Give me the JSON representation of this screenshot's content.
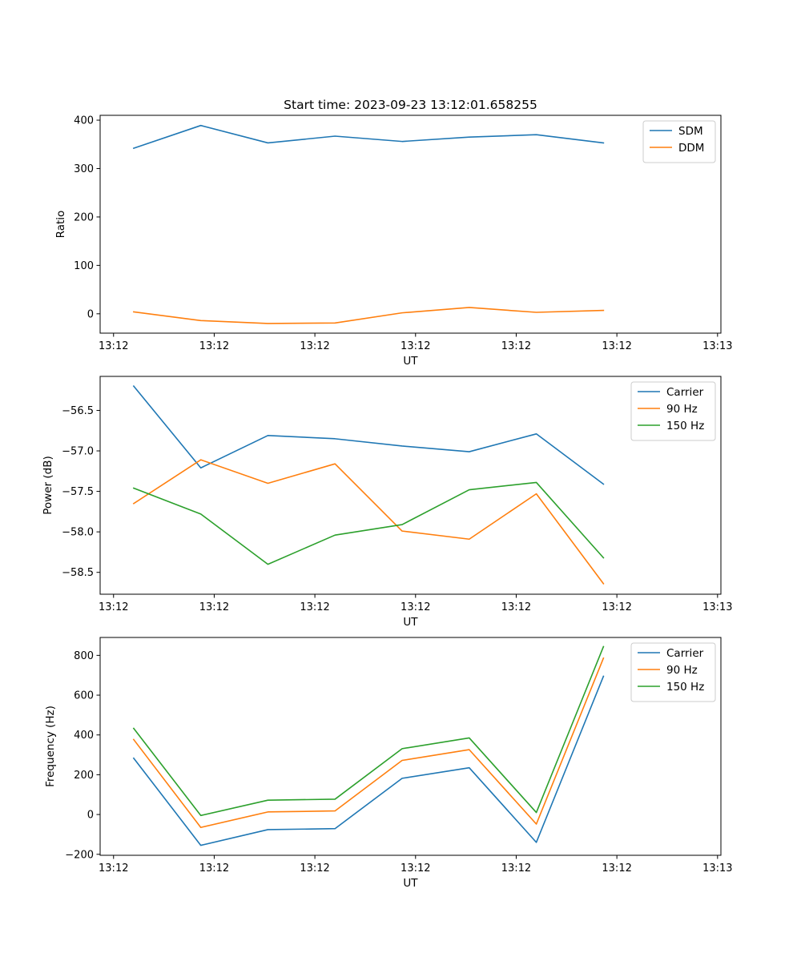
{
  "chart_data": [
    {
      "type": "line",
      "title": "Start time: 2023-09-23 13:12:01.658255",
      "xlabel": "UT",
      "ylabel": "Ratio",
      "xlim": [
        -0.5,
        8.75
      ],
      "ylim": [
        -40,
        410
      ],
      "x_ticks": [
        {
          "pos": -0.3,
          "label": "13:12"
        },
        {
          "pos": 1.2,
          "label": "13:12"
        },
        {
          "pos": 2.7,
          "label": "13:12"
        },
        {
          "pos": 4.2,
          "label": "13:12"
        },
        {
          "pos": 5.7,
          "label": "13:12"
        },
        {
          "pos": 7.2,
          "label": "13:12"
        },
        {
          "pos": 8.7,
          "label": "13:13"
        }
      ],
      "y_ticks": [
        0,
        100,
        200,
        300,
        400
      ],
      "y_tick_labels": [
        "0",
        "100",
        "200",
        "300",
        "400"
      ],
      "x": [
        0,
        1,
        2,
        3,
        4,
        5,
        6,
        7
      ],
      "series": [
        {
          "name": "SDM",
          "color": "#1f77b4",
          "values": [
            342,
            389,
            353,
            367,
            356,
            365,
            370,
            353
          ]
        },
        {
          "name": "DDM",
          "color": "#ff7f0e",
          "values": [
            4,
            -14,
            -20,
            -19,
            2,
            13,
            3,
            7
          ]
        }
      ],
      "legend": "top-right"
    },
    {
      "type": "line",
      "title": "",
      "xlabel": "UT",
      "ylabel": "Power (dB)",
      "xlim": [
        -0.5,
        8.75
      ],
      "ylim": [
        -58.77,
        -56.08
      ],
      "x_ticks": [
        {
          "pos": -0.3,
          "label": "13:12"
        },
        {
          "pos": 1.2,
          "label": "13:12"
        },
        {
          "pos": 2.7,
          "label": "13:12"
        },
        {
          "pos": 4.2,
          "label": "13:12"
        },
        {
          "pos": 5.7,
          "label": "13:12"
        },
        {
          "pos": 7.2,
          "label": "13:12"
        },
        {
          "pos": 8.7,
          "label": "13:13"
        }
      ],
      "y_ticks": [
        -58.5,
        -58.0,
        -57.5,
        -57.0,
        -56.5
      ],
      "y_tick_labels": [
        "−58.5",
        "−58.0",
        "−57.5",
        "−57.0",
        "−56.5"
      ],
      "x": [
        0,
        1,
        2,
        3,
        4,
        5,
        6,
        7
      ],
      "series": [
        {
          "name": "Carrier",
          "color": "#1f77b4",
          "values": [
            -56.2,
            -57.21,
            -56.81,
            -56.85,
            -56.94,
            -57.01,
            -56.79,
            -57.41
          ]
        },
        {
          "name": "90 Hz",
          "color": "#ff7f0e",
          "values": [
            -57.65,
            -57.11,
            -57.4,
            -57.16,
            -57.99,
            -58.09,
            -57.53,
            -58.64
          ]
        },
        {
          "name": "150 Hz",
          "color": "#2ca02c",
          "values": [
            -57.46,
            -57.78,
            -58.4,
            -58.04,
            -57.91,
            -57.48,
            -57.39,
            -58.32
          ]
        }
      ],
      "legend": "top-right"
    },
    {
      "type": "line",
      "title": "",
      "xlabel": "UT",
      "ylabel": "Frequency (Hz)",
      "xlim": [
        -0.5,
        8.75
      ],
      "ylim": [
        -205,
        890
      ],
      "x_ticks": [
        {
          "pos": -0.3,
          "label": "13:12"
        },
        {
          "pos": 1.2,
          "label": "13:12"
        },
        {
          "pos": 2.7,
          "label": "13:12"
        },
        {
          "pos": 4.2,
          "label": "13:12"
        },
        {
          "pos": 5.7,
          "label": "13:12"
        },
        {
          "pos": 7.2,
          "label": "13:12"
        },
        {
          "pos": 8.7,
          "label": "13:13"
        }
      ],
      "y_ticks": [
        -200,
        0,
        200,
        400,
        600,
        800
      ],
      "y_tick_labels": [
        "−200",
        "0",
        "200",
        "400",
        "600",
        "800"
      ],
      "x": [
        0,
        1,
        2,
        3,
        4,
        5,
        6,
        7
      ],
      "series": [
        {
          "name": "Carrier",
          "color": "#1f77b4",
          "values": [
            283,
            -155,
            -76,
            -71,
            182,
            235,
            -140,
            695
          ]
        },
        {
          "name": "90 Hz",
          "color": "#ff7f0e",
          "values": [
            377,
            -65,
            13,
            18,
            272,
            326,
            -48,
            786
          ]
        },
        {
          "name": "150 Hz",
          "color": "#2ca02c",
          "values": [
            433,
            -5,
            72,
            77,
            331,
            385,
            10,
            844
          ]
        }
      ],
      "legend": "top-right"
    }
  ]
}
